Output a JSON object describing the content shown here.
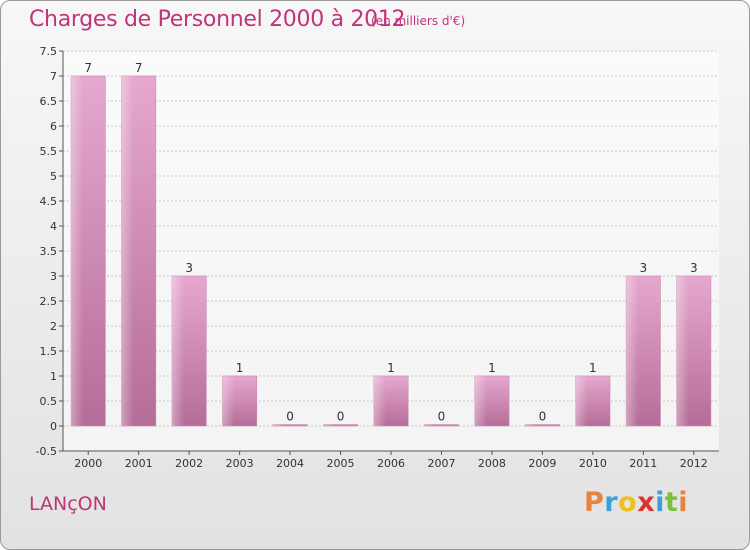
{
  "chart_data": {
    "type": "bar",
    "title": "Charges de Personnel 2000 à 2012",
    "subtitle": "(en milliers d'€)",
    "categories": [
      "2000",
      "2001",
      "2002",
      "2003",
      "2004",
      "2005",
      "2006",
      "2007",
      "2008",
      "2009",
      "2010",
      "2011",
      "2012"
    ],
    "values": [
      7,
      7,
      3,
      1,
      0,
      0,
      1,
      0,
      1,
      0,
      1,
      3,
      3
    ],
    "data_labels": [
      "7",
      "7",
      "3",
      "1",
      "0",
      "0",
      "1",
      "0",
      "1",
      "0",
      "1",
      "3",
      "3"
    ],
    "ylim": [
      -0.5,
      7.5
    ],
    "yticks": [
      "-0.5",
      "0",
      "0.5",
      "1",
      "1.5",
      "2",
      "2.5",
      "3",
      "3.5",
      "4",
      "4.5",
      "5",
      "5.5",
      "6",
      "6.5",
      "7",
      "7.5"
    ],
    "xlabel": "",
    "ylabel": "",
    "grid": true,
    "bar_color": "#d98ab8"
  },
  "footer": {
    "commune": "LANçON",
    "brand": [
      "P",
      "r",
      "o",
      "x",
      "i",
      "t",
      "i"
    ]
  },
  "colors": {
    "accent": "#c0347a",
    "brand": [
      "#e8833a",
      "#3aa0d8",
      "#f0c020",
      "#d8352f",
      "#3aa0d8",
      "#7bbf3a",
      "#e8833a"
    ]
  }
}
